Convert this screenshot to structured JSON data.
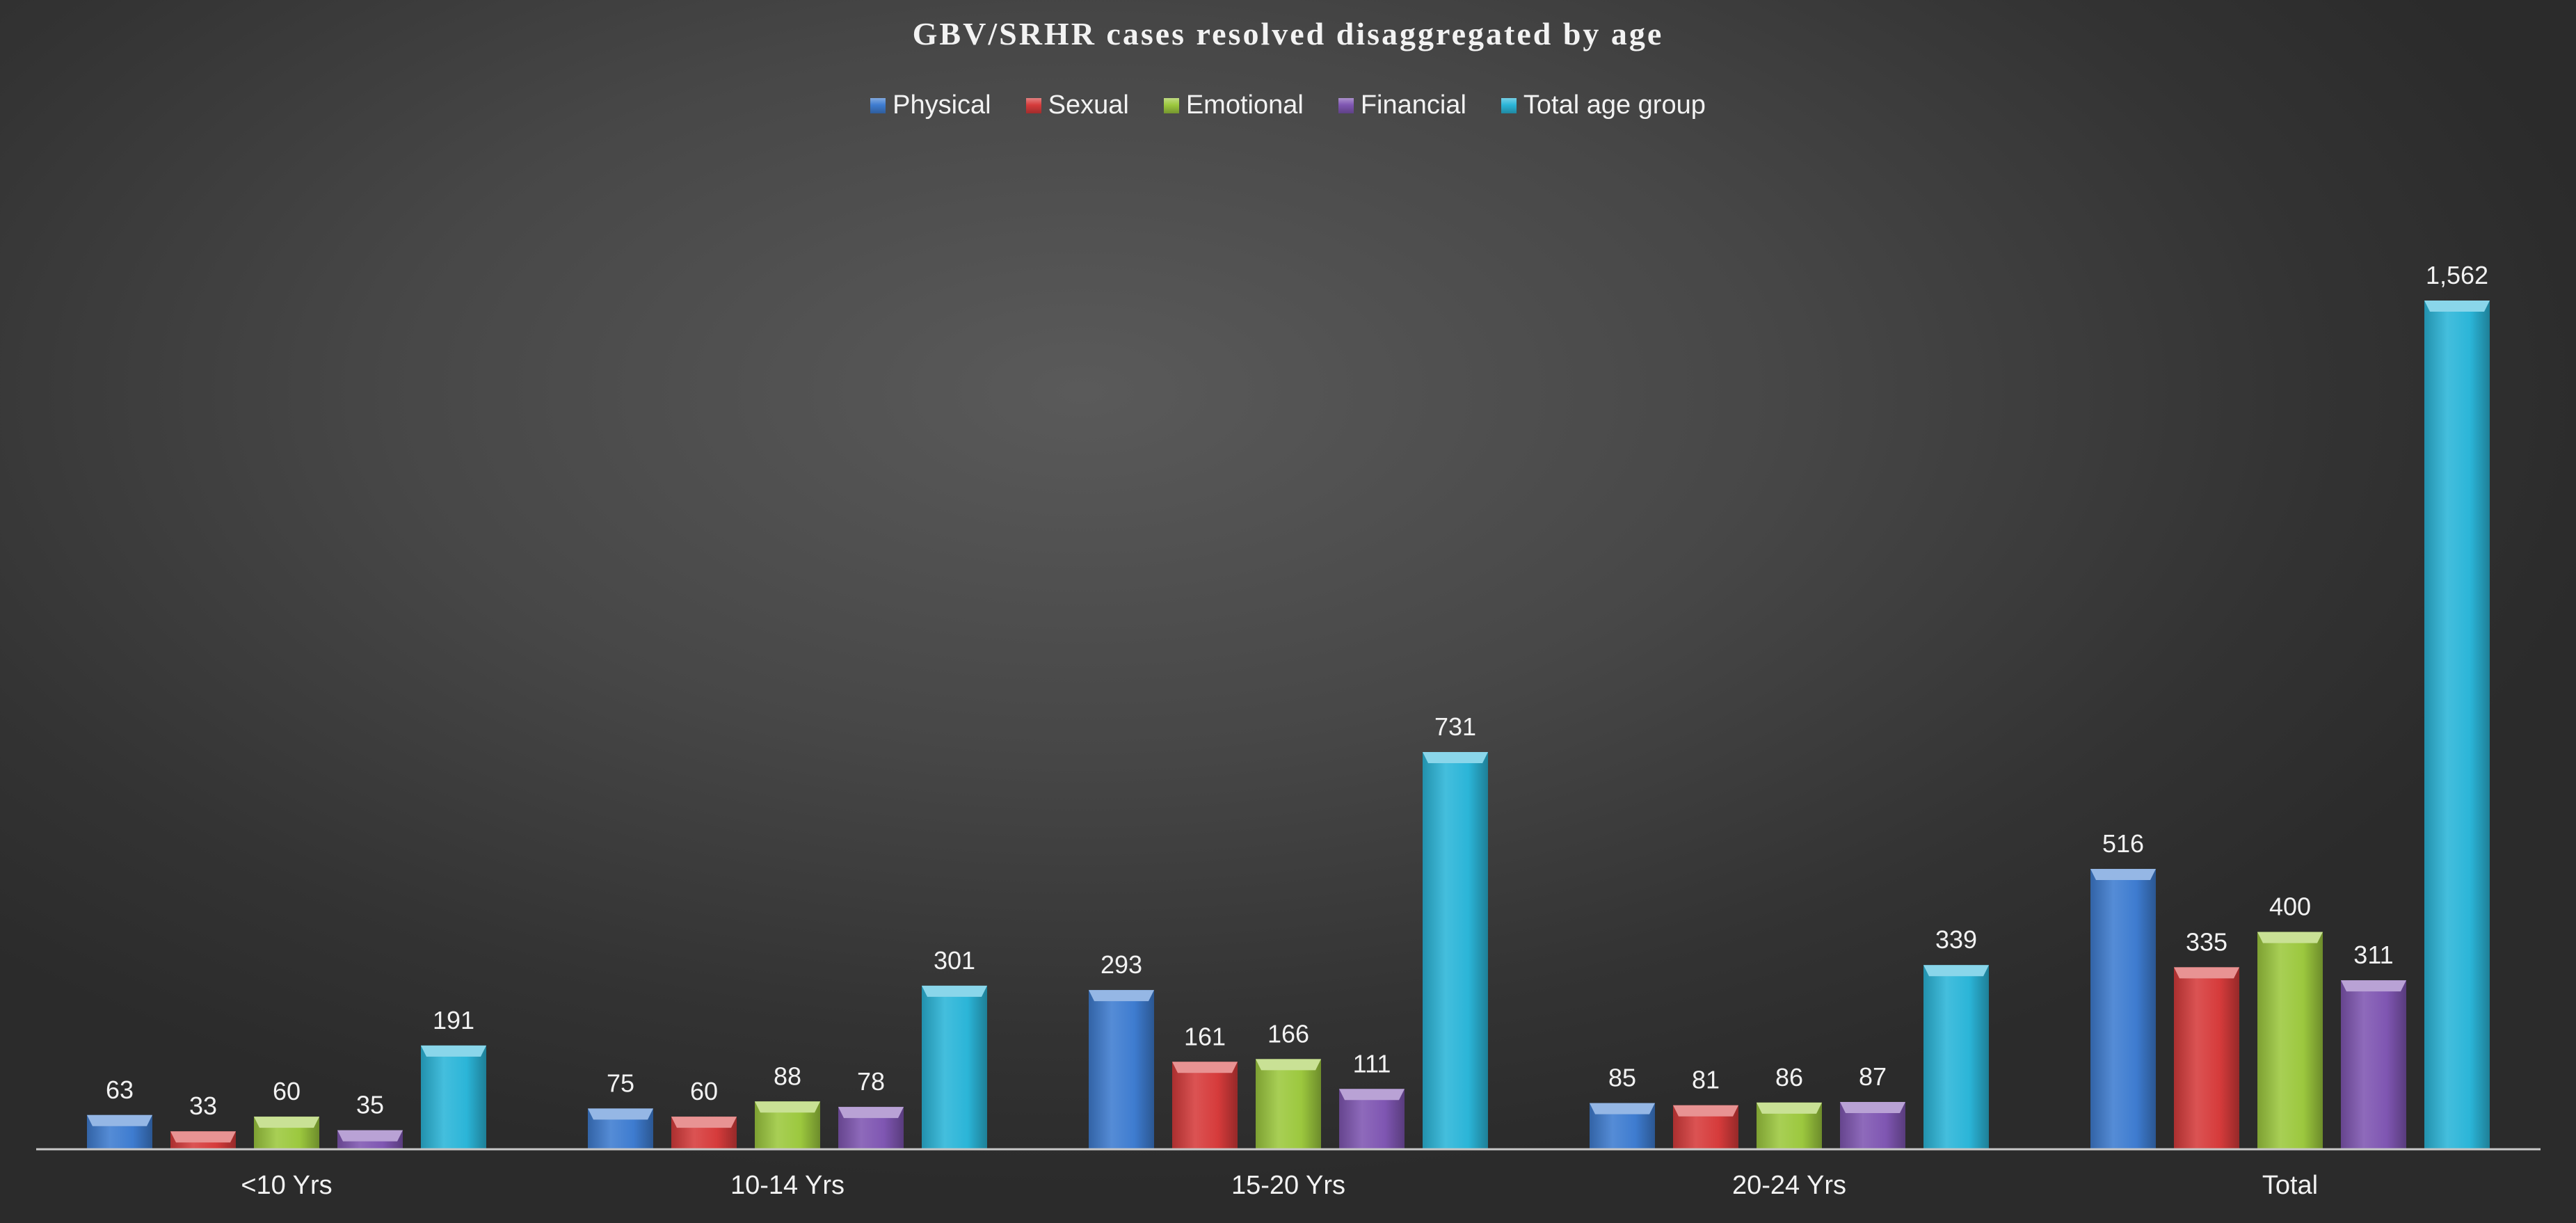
{
  "chart_data": {
    "type": "bar",
    "title": "GBV/SRHR cases resolved disaggregated by age",
    "categories": [
      "<10 Yrs",
      "10-14 Yrs",
      "15-20 Yrs",
      "20-24 Yrs",
      "Total"
    ],
    "series": [
      {
        "name": "Physical",
        "color": "#3e7cd0",
        "values": [
          63,
          75,
          293,
          85,
          516
        ],
        "labels": [
          "63",
          "75",
          "293",
          "85",
          "516"
        ]
      },
      {
        "name": "Sexual",
        "color": "#d63b3b",
        "values": [
          33,
          60,
          161,
          81,
          335
        ],
        "labels": [
          "33",
          "60",
          "161",
          "81",
          "335"
        ]
      },
      {
        "name": "Emotional",
        "color": "#9cc83e",
        "values": [
          60,
          88,
          166,
          86,
          400
        ],
        "labels": [
          "60",
          "88",
          "166",
          "86",
          "400"
        ]
      },
      {
        "name": "Financial",
        "color": "#7f56b2",
        "values": [
          35,
          78,
          111,
          87,
          311
        ],
        "labels": [
          "35",
          "78",
          "111",
          "87",
          "311"
        ]
      },
      {
        "name": "Total age group",
        "color": "#2bb5d8",
        "values": [
          191,
          301,
          731,
          339,
          1562
        ],
        "labels": [
          "191",
          "301",
          "731",
          "339",
          "1,562"
        ]
      }
    ],
    "xlabel": "",
    "ylabel": "",
    "ylim": [
      0,
      1562
    ],
    "grid": false,
    "legend_position": "top"
  }
}
